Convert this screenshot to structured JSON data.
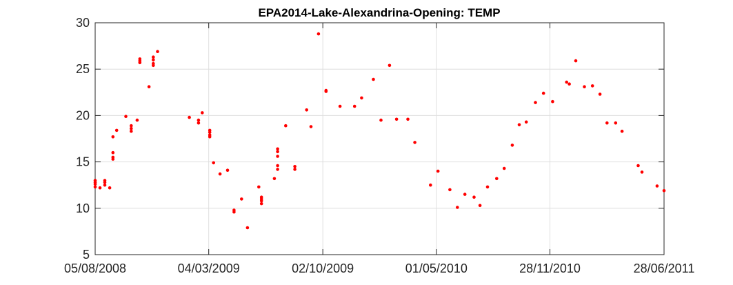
{
  "chart_data": {
    "type": "scatter",
    "title": "EPA2014-Lake-Alexandrina-Opening: TEMP",
    "xlabel": "",
    "ylabel": "",
    "x_axis_type": "date",
    "xlim": [
      "2008-08-05",
      "2011-06-28"
    ],
    "ylim": [
      5,
      30
    ],
    "x_ticks": [
      "2008-08-05",
      "2009-03-04",
      "2009-10-02",
      "2010-05-01",
      "2010-11-28",
      "2011-06-28"
    ],
    "x_tick_labels": [
      "05/08/2008",
      "04/03/2009",
      "02/10/2009",
      "01/05/2010",
      "28/11/2010",
      "28/06/2011"
    ],
    "y_ticks": [
      5,
      10,
      15,
      20,
      25,
      30
    ],
    "y_tick_labels": [
      "5",
      "10",
      "15",
      "20",
      "25",
      "30"
    ],
    "grid": true,
    "marker_color": "#ff0000",
    "series": [
      {
        "points": [
          [
            "2008-08-05",
            12.3
          ],
          [
            "2008-08-05",
            12.6
          ],
          [
            "2008-08-05",
            12.8
          ],
          [
            "2008-08-05",
            13.0
          ],
          [
            "2008-08-14",
            12.2
          ],
          [
            "2008-08-23",
            12.5
          ],
          [
            "2008-08-23",
            12.8
          ],
          [
            "2008-08-23",
            13.0
          ],
          [
            "2008-09-01",
            12.2
          ],
          [
            "2008-09-07",
            15.3
          ],
          [
            "2008-09-07",
            15.5
          ],
          [
            "2008-09-07",
            16.0
          ],
          [
            "2008-09-07",
            17.7
          ],
          [
            "2008-09-14",
            18.4
          ],
          [
            "2008-10-01",
            19.9
          ],
          [
            "2008-10-11",
            18.3
          ],
          [
            "2008-10-11",
            18.6
          ],
          [
            "2008-10-11",
            18.9
          ],
          [
            "2008-10-22",
            19.5
          ],
          [
            "2008-10-27",
            25.7
          ],
          [
            "2008-10-27",
            25.9
          ],
          [
            "2008-10-27",
            26.1
          ],
          [
            "2008-11-13",
            23.1
          ],
          [
            "2008-11-21",
            25.4
          ],
          [
            "2008-11-21",
            25.6
          ],
          [
            "2008-11-21",
            26.0
          ],
          [
            "2008-11-21",
            26.3
          ],
          [
            "2008-11-29",
            26.9
          ],
          [
            "2009-01-27",
            19.8
          ],
          [
            "2009-02-13",
            19.2
          ],
          [
            "2009-02-13",
            19.5
          ],
          [
            "2009-02-20",
            20.3
          ],
          [
            "2009-03-06",
            17.7
          ],
          [
            "2009-03-06",
            17.9
          ],
          [
            "2009-03-06",
            18.2
          ],
          [
            "2009-03-06",
            18.4
          ],
          [
            "2009-03-13",
            14.9
          ],
          [
            "2009-03-25",
            13.7
          ],
          [
            "2009-04-08",
            14.1
          ],
          [
            "2009-04-20",
            9.6
          ],
          [
            "2009-04-20",
            9.8
          ],
          [
            "2009-05-04",
            11.0
          ],
          [
            "2009-05-15",
            7.9
          ],
          [
            "2009-06-05",
            12.3
          ],
          [
            "2009-06-10",
            10.5
          ],
          [
            "2009-06-10",
            10.8
          ],
          [
            "2009-06-10",
            11.0
          ],
          [
            "2009-06-10",
            11.2
          ],
          [
            "2009-07-04",
            13.2
          ],
          [
            "2009-07-10",
            14.2
          ],
          [
            "2009-07-10",
            14.6
          ],
          [
            "2009-07-10",
            15.6
          ],
          [
            "2009-07-10",
            16.1
          ],
          [
            "2009-07-10",
            16.4
          ],
          [
            "2009-07-25",
            18.9
          ],
          [
            "2009-08-11",
            14.2
          ],
          [
            "2009-08-11",
            14.5
          ],
          [
            "2009-09-02",
            20.6
          ],
          [
            "2009-09-10",
            18.8
          ],
          [
            "2009-09-24",
            28.8
          ],
          [
            "2009-10-08",
            22.6
          ],
          [
            "2009-10-08",
            22.7
          ],
          [
            "2009-11-03",
            21.0
          ],
          [
            "2009-11-30",
            21.0
          ],
          [
            "2009-12-13",
            21.9
          ],
          [
            "2010-01-04",
            23.9
          ],
          [
            "2010-01-18",
            19.5
          ],
          [
            "2010-02-03",
            25.4
          ],
          [
            "2010-02-16",
            19.6
          ],
          [
            "2010-03-09",
            19.6
          ],
          [
            "2010-03-22",
            17.1
          ],
          [
            "2010-04-20",
            12.5
          ],
          [
            "2010-05-04",
            14.0
          ],
          [
            "2010-05-26",
            12.0
          ],
          [
            "2010-06-09",
            10.1
          ],
          [
            "2010-06-23",
            11.5
          ],
          [
            "2010-07-10",
            11.2
          ],
          [
            "2010-07-21",
            10.3
          ],
          [
            "2010-08-04",
            12.3
          ],
          [
            "2010-08-21",
            13.2
          ],
          [
            "2010-09-04",
            14.3
          ],
          [
            "2010-09-19",
            16.8
          ],
          [
            "2010-10-02",
            19.0
          ],
          [
            "2010-10-15",
            19.3
          ],
          [
            "2010-11-01",
            21.4
          ],
          [
            "2010-11-16",
            22.4
          ],
          [
            "2010-12-03",
            21.5
          ],
          [
            "2010-12-29",
            23.6
          ],
          [
            "2011-01-03",
            23.4
          ],
          [
            "2011-01-15",
            25.9
          ],
          [
            "2011-01-31",
            23.1
          ],
          [
            "2011-02-15",
            23.2
          ],
          [
            "2011-03-01",
            22.3
          ],
          [
            "2011-03-14",
            19.2
          ],
          [
            "2011-03-30",
            19.2
          ],
          [
            "2011-04-11",
            18.3
          ],
          [
            "2011-05-11",
            14.6
          ],
          [
            "2011-05-18",
            13.9
          ],
          [
            "2011-06-15",
            12.4
          ],
          [
            "2011-06-28",
            11.9
          ]
        ]
      }
    ]
  }
}
